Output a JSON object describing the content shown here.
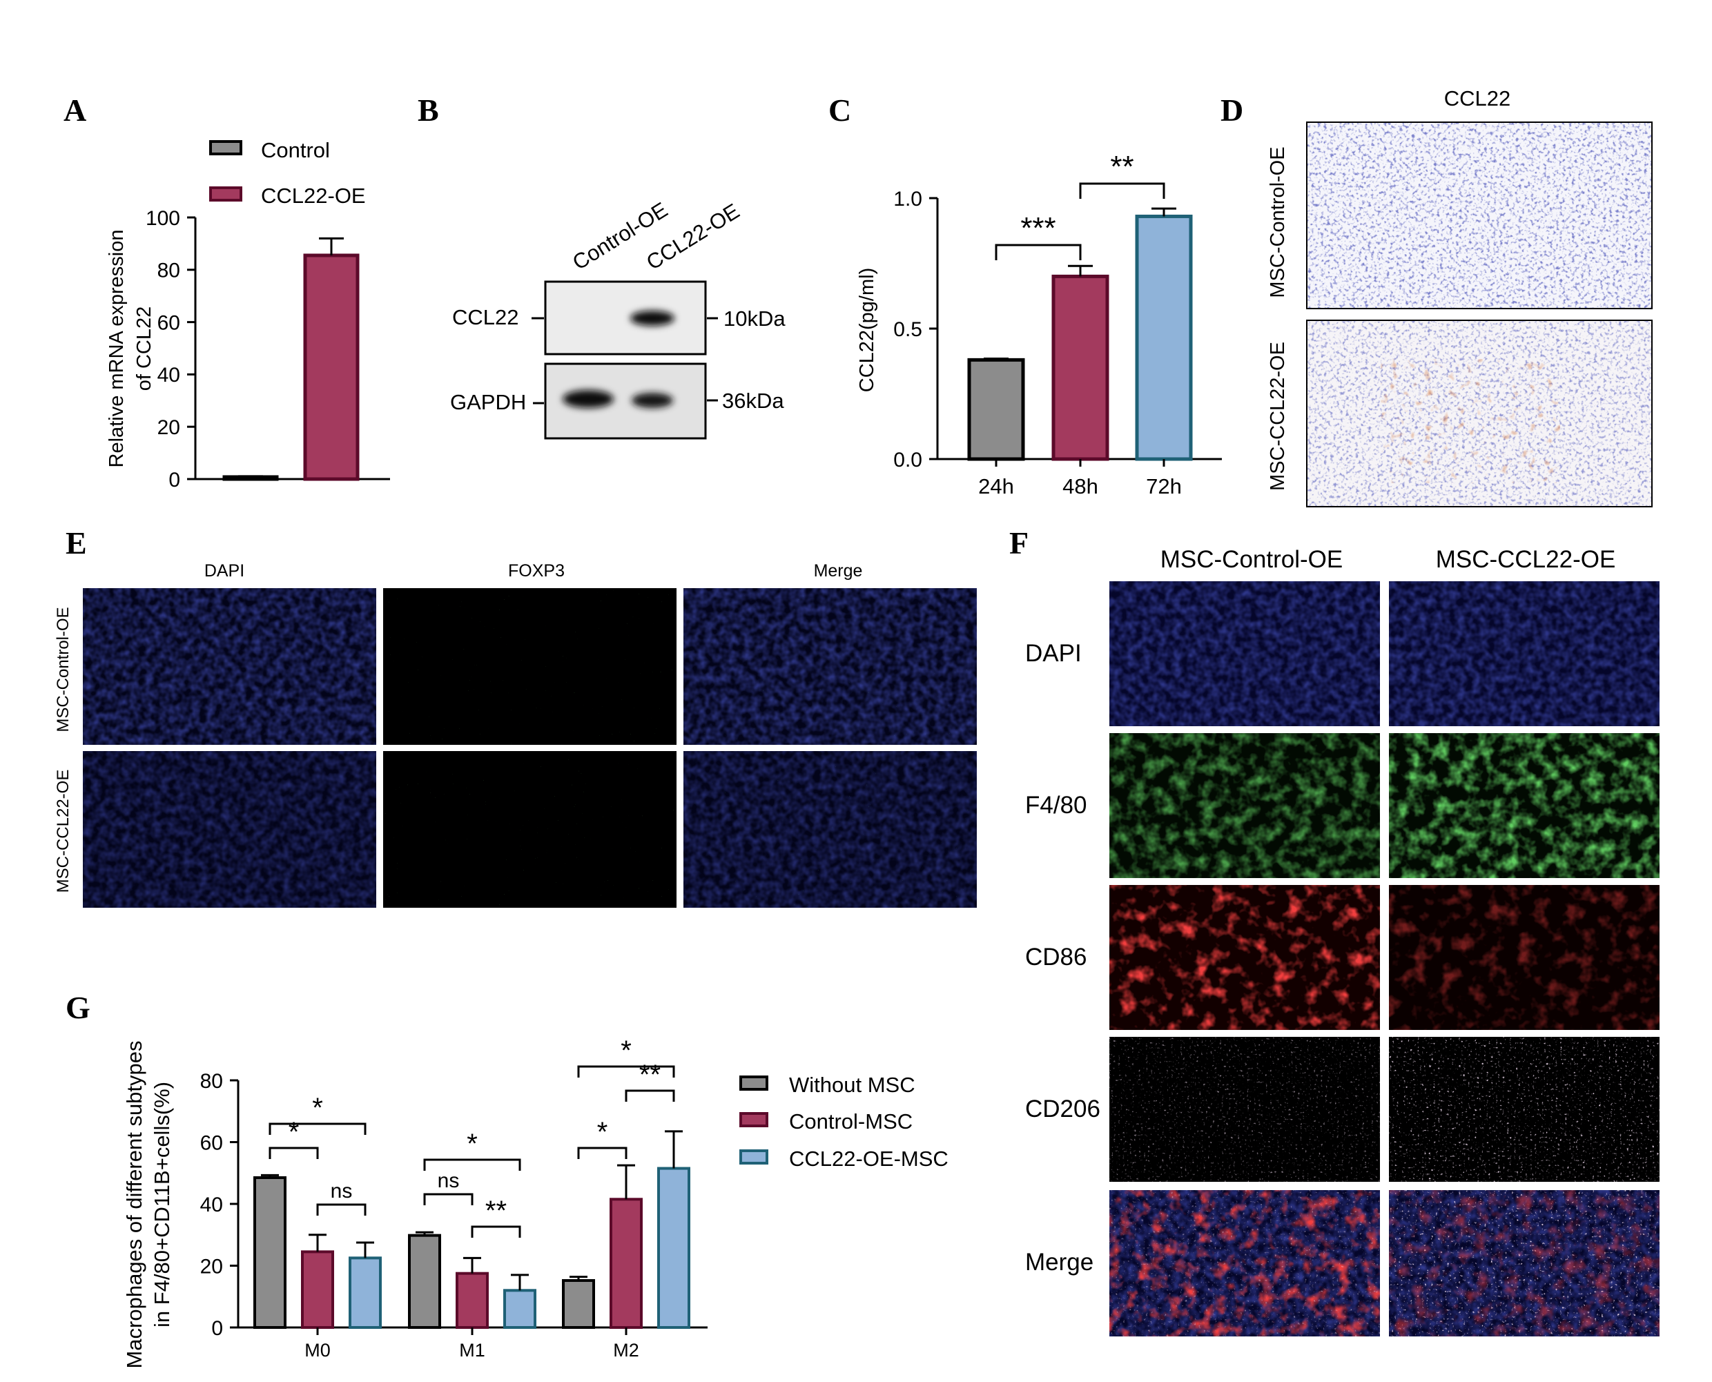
{
  "panel_letters": {
    "A": "A",
    "B": "B",
    "C": "C",
    "D": "D",
    "E": "E",
    "F": "F",
    "G": "G"
  },
  "colors": {
    "gray": "#8c8c8c",
    "maroon": "#a33a5e",
    "blue": "#8fb3d9",
    "maroon_edge": "#5c0a2a",
    "blue_edge": "#1f6176",
    "dark": "#000000"
  },
  "chart_data": [
    {
      "panel": "A",
      "type": "bar",
      "categories": [
        "Control",
        "CCL22-OE"
      ],
      "values": [
        0.8,
        85.5
      ],
      "errors": [
        0.3,
        6.5
      ],
      "ylabel_line1": "Relative mRNA expression",
      "ylabel_line2": "of CCL22",
      "ylim": [
        0,
        100
      ],
      "yticks": [
        "0",
        "20",
        "40",
        "60",
        "80",
        "100"
      ],
      "legend": [
        "Control",
        "CCL22-OE"
      ],
      "legend_position": "top"
    },
    {
      "panel": "C",
      "type": "bar",
      "categories": [
        "24h",
        "48h",
        "72h"
      ],
      "values": [
        0.38,
        0.7,
        0.93
      ],
      "errors": [
        0.005,
        0.04,
        0.03
      ],
      "ylabel": "CCL22(pg/ml)",
      "ylim": [
        0,
        1.0
      ],
      "yticks": [
        "0.0",
        "0.5",
        "1.0"
      ],
      "significance": [
        {
          "from": "24h",
          "to": "48h",
          "label": "***"
        },
        {
          "from": "48h",
          "to": "72h",
          "label": "**"
        }
      ]
    },
    {
      "panel": "G",
      "type": "bar",
      "categories": [
        "M0",
        "M1",
        "M2"
      ],
      "series": [
        {
          "name": "Without MSC",
          "values": [
            48.5,
            29.8,
            15.2
          ],
          "errors": [
            0.8,
            1.0,
            1.2
          ]
        },
        {
          "name": "Control-MSC",
          "values": [
            24.5,
            17.5,
            41.5
          ],
          "errors": [
            5.5,
            5.0,
            11.0
          ]
        },
        {
          "name": "CCL22-OE-MSC",
          "values": [
            22.5,
            12.0,
            51.5
          ],
          "errors": [
            5.0,
            5.0,
            12.0
          ]
        }
      ],
      "ylabel_line1": "Macrophages of different subtypes",
      "ylabel_line2": "in F4/80+CD11B+cells(%)",
      "ylim": [
        0,
        80
      ],
      "yticks": [
        "0",
        "20",
        "40",
        "60",
        "80"
      ],
      "legend_position": "right",
      "significance": [
        {
          "group": "M0",
          "from": 0,
          "to": 1,
          "label": "*"
        },
        {
          "group": "M0",
          "from": 1,
          "to": 2,
          "label": "ns"
        },
        {
          "group": "M0",
          "from": 0,
          "to": 2,
          "label": "*"
        },
        {
          "group": "M1",
          "from": 0,
          "to": 1,
          "label": "ns"
        },
        {
          "group": "M1",
          "from": 1,
          "to": 2,
          "label": "**"
        },
        {
          "group": "M1",
          "from": 0,
          "to": 2,
          "label": "*"
        },
        {
          "group": "M2",
          "from": 0,
          "to": 1,
          "label": "*"
        },
        {
          "group": "M2",
          "from": 1,
          "to": 2,
          "label": "**"
        },
        {
          "group": "M2",
          "from": 0,
          "to": 2,
          "label": "*"
        }
      ]
    }
  ],
  "panel_B": {
    "lanes": [
      "Control-OE",
      "CCL22-OE"
    ],
    "rows": [
      {
        "protein": "CCL22",
        "size": "10kDa"
      },
      {
        "protein": "GAPDH",
        "size": "36kDa"
      }
    ]
  },
  "panel_D": {
    "title": "CCL22",
    "rows": [
      "MSC-Control-OE",
      "MSC-CCL22-OE"
    ]
  },
  "panel_E": {
    "columns": [
      "DAPI",
      "FOXP3",
      "Merge"
    ],
    "rows": [
      "MSC-Control-OE",
      "MSC-CCL22-OE"
    ]
  },
  "panel_F": {
    "columns": [
      "MSC-Control-OE",
      "MSC-CCL22-OE"
    ],
    "rows": [
      "DAPI",
      "F4/80",
      "CD86",
      "CD206",
      "Merge"
    ]
  }
}
